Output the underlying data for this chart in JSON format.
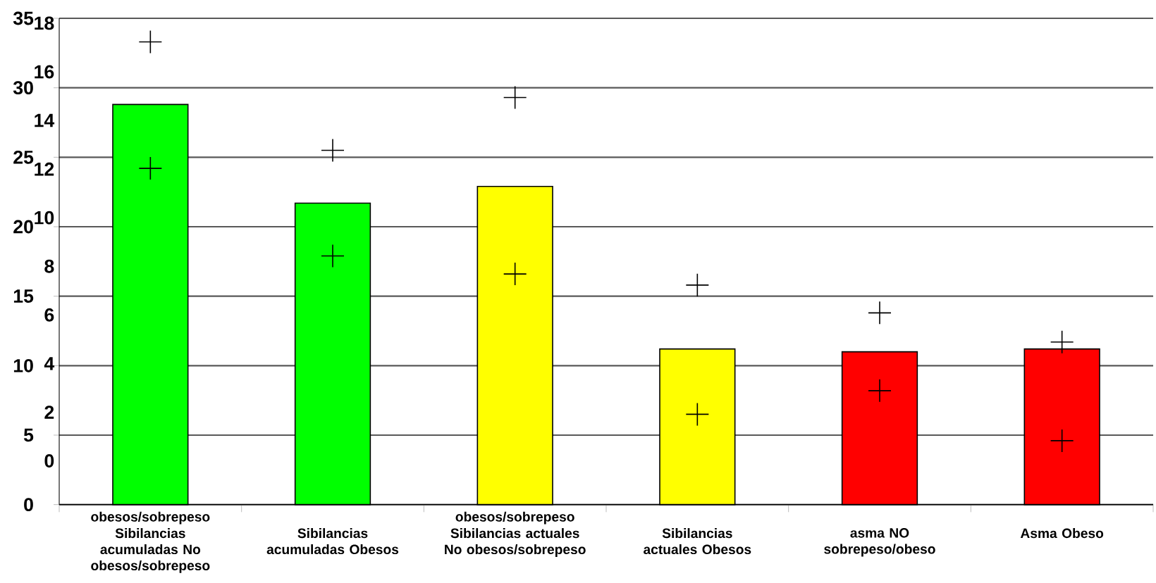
{
  "chart_data": {
    "type": "bar",
    "categories": [
      "Sibilancias acumuladas No obesos/sobrepeso",
      "Sibilancias acumuladas Obesos",
      "Sibilancias actuales No obesos/sobrepeso",
      "Sibilancias actuales Obesos",
      "asma NO sobrepeso/obeso",
      "Asma Obeso"
    ],
    "series": [
      {
        "values": [
          28.8,
          21.7,
          22.9,
          11.2,
          11.0,
          11.2
        ],
        "colors": [
          "#00ff00",
          "#00ff00",
          "#ffff00",
          "#ffff00",
          "#ff0000",
          "#ff0000"
        ]
      },
      {
        "type": "scatter",
        "x": [
          "Sibilancias acumuladas No obesos/sobrepeso",
          "Sibilancias acumuladas Obesos",
          "Sibilancias actuales No obesos/sobrepeso",
          "Sibilancias actuales Obesos",
          "asma NO sobrepeso/obeso",
          "Asma Obeso"
        ],
        "values": [
          33.3,
          25.5,
          29.3,
          15.8,
          13.8,
          11.7
        ],
        "color": "#000000",
        "marker": "cross"
      },
      {
        "type": "scatter",
        "x": [
          "Sibilancias acumuladas No obesos/sobrepeso",
          "Sibilancias acumuladas Obesos",
          "Sibilancias actuales No obesos/sobrepeso",
          "Sibilancias actuales Obesos",
          "asma NO sobrepeso/obeso",
          "Asma Obeso"
        ],
        "values": [
          24.2,
          17.9,
          16.6,
          6.5,
          8.2,
          4.6
        ],
        "color": "#000000",
        "marker": "cross"
      }
    ],
    "ylim": [
      0,
      35
    ],
    "yticks": [
      0,
      5,
      10,
      15,
      20,
      25,
      30,
      35
    ],
    "y2lim": [
      -1.8,
      18.2
    ],
    "y2ticks": [
      0,
      2,
      4,
      6,
      8,
      10,
      12,
      14,
      16,
      18
    ],
    "grid": "y",
    "annotations": [
      "obesos/sobrepeso",
      "obesos/sobrepeso"
    ]
  }
}
